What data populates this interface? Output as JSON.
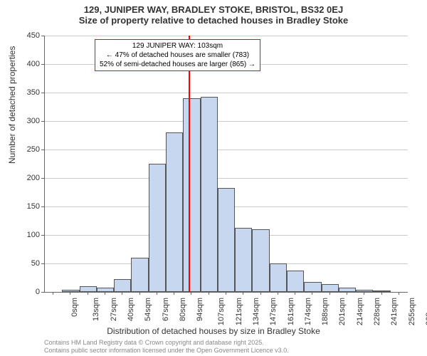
{
  "title": {
    "main": "129, JUNIPER WAY, BRADLEY STOKE, BRISTOL, BS32 0EJ",
    "sub": "Size of property relative to detached houses in Bradley Stoke"
  },
  "chart": {
    "type": "histogram",
    "ylim": [
      0,
      450
    ],
    "ytick_step": 50,
    "yticks": [
      0,
      50,
      100,
      150,
      200,
      250,
      300,
      350,
      400,
      450
    ],
    "xticks": [
      "0sqm",
      "13sqm",
      "27sqm",
      "40sqm",
      "54sqm",
      "67sqm",
      "80sqm",
      "94sqm",
      "107sqm",
      "121sqm",
      "134sqm",
      "147sqm",
      "161sqm",
      "174sqm",
      "188sqm",
      "201sqm",
      "214sqm",
      "228sqm",
      "241sqm",
      "255sqm",
      "268sqm"
    ],
    "bar_color": "#c7d7ef",
    "bar_border": "#555555",
    "grid_color": "#cccccc",
    "values": [
      0,
      4,
      10,
      8,
      22,
      60,
      225,
      280,
      340,
      343,
      182,
      112,
      110,
      50,
      38,
      18,
      14,
      8,
      4,
      2,
      0
    ],
    "reference_line": {
      "x_index": 8.3,
      "color": "#ff0000"
    },
    "annotation": {
      "line1": "129 JUNIPER WAY: 103sqm",
      "line2": "← 47% of detached houses are smaller (783)",
      "line3": "52% of semi-detached houses are larger (865) →",
      "border_color": "#ff0000"
    },
    "ylabel": "Number of detached properties",
    "xlabel": "Distribution of detached houses by size in Bradley Stoke"
  },
  "footer": {
    "line1": "Contains HM Land Registry data © Crown copyright and database right 2025.",
    "line2": "Contains public sector information licensed under the Open Government Licence v3.0."
  }
}
